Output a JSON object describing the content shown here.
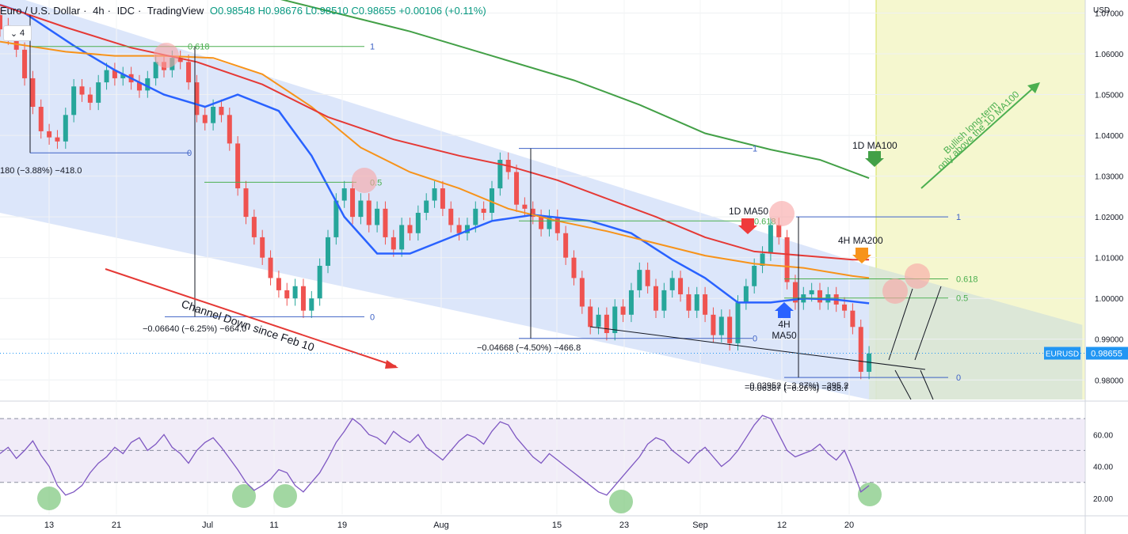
{
  "header": {
    "symbol": "Euro / U.S. Dollar",
    "timeframe": "4h",
    "source": "IDC",
    "platform": "TradingView",
    "ohlc": "O0.98548 H0.98676 L0.98510 C0.98655 +0.00106 (+0.11%)"
  },
  "badge": {
    "icon": "chevron-down-icon",
    "count": "4"
  },
  "colors": {
    "channel": "#c9d9f7",
    "ma50_4h": "#2962ff",
    "ma100_1d": "#e53935",
    "ma200_4h": "#f7931a",
    "ma100_1d_green": "#43a047",
    "rsi": "#7e57c2",
    "price_label": "#2196f3",
    "fib": "#4caf50",
    "up": "#26a69a",
    "down": "#ef5350"
  },
  "chart_data": [
    {
      "type": "line",
      "title": "Euro / U.S. Dollar · 4h · IDC",
      "y_axis_label": "USD",
      "ylim": [
        0.9752,
        1.0732
      ],
      "y_ticks": [
        "1.07000",
        "1.06000",
        "1.05000",
        "1.04000",
        "1.03000",
        "1.02000",
        "1.01000",
        "1.00000",
        "0.99000",
        "0.98000"
      ],
      "x_ticks": [
        "13",
        "21",
        "Jul",
        "11",
        "19",
        "Aug",
        "15",
        "23",
        "Sep",
        "12",
        "20"
      ],
      "current_price": {
        "label": "EURUSD",
        "value": "0.98655"
      },
      "series": [
        {
          "name": "4H MA50",
          "points": [
            [
              0,
              1.072
            ],
            [
              3,
              1.07
            ],
            [
              9,
              1.062
            ],
            [
              14,
              1.056
            ],
            [
              20,
              1.05
            ],
            [
              25,
              1.047
            ],
            [
              29,
              1.05
            ],
            [
              34,
              1.046
            ],
            [
              38,
              1.035
            ],
            [
              42,
              1.02
            ],
            [
              46,
              1.011
            ],
            [
              50,
              1.011
            ],
            [
              55,
              1.015
            ],
            [
              60,
              1.019
            ],
            [
              65,
              1.0205
            ],
            [
              72,
              1.019
            ],
            [
              77,
              1.016
            ],
            [
              82,
              1.0095
            ],
            [
              86,
              1.005
            ],
            [
              90,
              0.999
            ],
            [
              94,
              0.999
            ],
            [
              98,
              1.0
            ],
            [
              102,
              0.9997
            ],
            [
              106,
              0.9988
            ]
          ]
        },
        {
          "name": "1D MA50",
          "points": [
            [
              0,
              1.063
            ],
            [
              8,
              1.0605
            ],
            [
              14,
              1.0595
            ],
            [
              20,
              1.0595
            ],
            [
              26,
              1.059
            ],
            [
              32,
              1.055
            ],
            [
              38,
              1.047
            ],
            [
              44,
              1.037
            ],
            [
              50,
              1.031
            ],
            [
              56,
              1.027
            ],
            [
              62,
              1.022
            ],
            [
              68,
              1.019
            ],
            [
              74,
              1.0165
            ],
            [
              80,
              1.0135
            ],
            [
              86,
              1.0105
            ],
            [
              92,
              1.0085
            ],
            [
              98,
              1.0075
            ],
            [
              104,
              1.0055
            ],
            [
              106,
              1.005
            ]
          ]
        },
        {
          "name": "1D MA100",
          "points": [
            [
              0,
              1.072
            ],
            [
              8,
              1.0665
            ],
            [
              16,
              1.0615
            ],
            [
              24,
              1.058
            ],
            [
              32,
              1.0525
            ],
            [
              40,
              1.0445
            ],
            [
              48,
              1.039
            ],
            [
              56,
              1.035
            ],
            [
              62,
              1.0325
            ],
            [
              68,
              1.029
            ],
            [
              74,
              1.0245
            ],
            [
              80,
              1.02
            ],
            [
              86,
              1.015
            ],
            [
              92,
              1.0115
            ],
            [
              98,
              1.0105
            ],
            [
              104,
              1.0095
            ],
            [
              106,
              1.0095
            ]
          ]
        },
        {
          "name": "1D MA100 (weekly)",
          "points": [
            [
              32,
              1.0745
            ],
            [
              40,
              1.0705
            ],
            [
              50,
              1.0655
            ],
            [
              60,
              1.0595
            ],
            [
              70,
              1.0535
            ],
            [
              78,
              1.0475
            ],
            [
              86,
              1.0405
            ],
            [
              94,
              1.0365
            ],
            [
              100,
              1.034
            ],
            [
              106,
              1.0295
            ]
          ]
        }
      ],
      "candles": [
        [
          0,
          1.0695,
          1.066
        ],
        [
          1,
          1.067,
          1.064
        ],
        [
          2,
          1.065,
          1.061
        ],
        [
          3,
          1.061,
          1.054
        ],
        [
          4,
          1.054,
          1.047
        ],
        [
          5,
          1.047,
          1.041
        ],
        [
          6,
          1.041,
          1.0395
        ],
        [
          7,
          1.0395,
          1.0385
        ],
        [
          8,
          1.0385,
          1.045
        ],
        [
          9,
          1.045,
          1.052
        ],
        [
          10,
          1.052,
          1.05
        ],
        [
          11,
          1.05,
          1.048
        ],
        [
          12,
          1.048,
          1.053
        ],
        [
          13,
          1.053,
          1.056
        ],
        [
          14,
          1.056,
          1.054
        ],
        [
          15,
          1.054,
          1.055
        ],
        [
          16,
          1.055,
          1.053
        ],
        [
          17,
          1.053,
          1.051
        ],
        [
          18,
          1.051,
          1.054
        ],
        [
          19,
          1.054,
          1.058
        ],
        [
          20,
          1.058,
          1.056
        ],
        [
          21,
          1.056,
          1.059
        ],
        [
          22,
          1.059,
          1.058
        ],
        [
          23,
          1.058,
          1.053
        ],
        [
          24,
          1.053,
          1.045
        ],
        [
          25,
          1.045,
          1.043
        ],
        [
          26,
          1.043,
          1.047
        ],
        [
          27,
          1.047,
          1.045
        ],
        [
          28,
          1.045,
          1.038
        ],
        [
          29,
          1.038,
          1.027
        ],
        [
          30,
          1.027,
          1.02
        ],
        [
          31,
          1.02,
          1.015
        ],
        [
          32,
          1.015,
          1.01
        ],
        [
          33,
          1.01,
          1.005
        ],
        [
          34,
          1.005,
          1.002
        ],
        [
          35,
          1.002,
          1.0
        ],
        [
          36,
          1.0,
          1.003
        ],
        [
          37,
          1.003,
          0.997
        ],
        [
          38,
          0.997,
          1.0
        ],
        [
          39,
          1.0,
          1.008
        ],
        [
          40,
          1.008,
          1.015
        ],
        [
          41,
          1.015,
          1.024
        ],
        [
          42,
          1.024,
          1.027
        ],
        [
          43,
          1.027,
          1.02
        ],
        [
          44,
          1.02,
          1.024
        ],
        [
          45,
          1.024,
          1.018
        ],
        [
          46,
          1.018,
          1.022
        ],
        [
          47,
          1.022,
          1.015
        ],
        [
          48,
          1.015,
          1.012
        ],
        [
          49,
          1.012,
          1.018
        ],
        [
          50,
          1.018,
          1.016
        ],
        [
          51,
          1.016,
          1.021
        ],
        [
          52,
          1.021,
          1.024
        ],
        [
          53,
          1.024,
          1.027
        ],
        [
          54,
          1.027,
          1.022
        ],
        [
          55,
          1.022,
          1.018
        ],
        [
          56,
          1.018,
          1.016
        ],
        [
          57,
          1.016,
          1.018
        ],
        [
          58,
          1.018,
          1.022
        ],
        [
          59,
          1.022,
          1.021
        ],
        [
          60,
          1.021,
          1.027
        ],
        [
          61,
          1.027,
          1.034
        ],
        [
          62,
          1.034,
          1.031
        ],
        [
          63,
          1.031,
          1.023
        ],
        [
          64,
          1.023,
          1.022
        ],
        [
          65,
          1.022,
          1.02
        ],
        [
          66,
          1.02,
          1.017
        ],
        [
          67,
          1.017,
          1.02
        ],
        [
          68,
          1.02,
          1.016
        ],
        [
          69,
          1.016,
          1.01
        ],
        [
          70,
          1.01,
          1.005
        ],
        [
          71,
          1.005,
          0.998
        ],
        [
          72,
          0.998,
          0.993
        ],
        [
          73,
          0.993,
          0.996
        ],
        [
          74,
          0.996,
          0.9915
        ],
        [
          75,
          0.9915,
          0.998
        ],
        [
          76,
          0.998,
          0.996
        ],
        [
          77,
          0.996,
          1.002
        ],
        [
          78,
          1.002,
          1.007
        ],
        [
          79,
          1.007,
          1.003
        ],
        [
          80,
          1.003,
          0.997
        ],
        [
          81,
          0.997,
          1.002
        ],
        [
          82,
          1.002,
          1.005
        ],
        [
          83,
          1.005,
          1.001
        ],
        [
          84,
          1.001,
          0.997
        ],
        [
          85,
          0.997,
          1.001
        ],
        [
          86,
          1.001,
          0.996
        ],
        [
          87,
          0.996,
          0.991
        ],
        [
          88,
          0.991,
          0.9955
        ],
        [
          89,
          0.9955,
          0.989
        ],
        [
          90,
          0.989,
          0.999
        ],
        [
          91,
          0.999,
          1.003
        ],
        [
          92,
          1.003,
          1.008
        ],
        [
          93,
          1.008,
          1.011
        ],
        [
          94,
          1.011,
          1.018
        ],
        [
          95,
          1.018,
          1.015
        ],
        [
          96,
          1.015,
          1.004
        ],
        [
          97,
          1.004,
          0.999
        ],
        [
          98,
          0.999,
          1.001
        ],
        [
          99,
          1.001,
          1.002
        ],
        [
          100,
          1.002,
          0.999
        ],
        [
          101,
          0.999,
          1.001
        ],
        [
          102,
          1.001,
          0.9985
        ],
        [
          103,
          0.9985,
          0.997
        ],
        [
          104,
          0.997,
          0.993
        ],
        [
          105,
          0.993,
          0.982
        ],
        [
          106,
          0.982,
          0.9865
        ]
      ],
      "annotations": {
        "fib_levels": [
          {
            "label": "0.618",
            "value": 1.0618
          },
          {
            "label": "1",
            "value": 1.0618
          },
          {
            "label": "0",
            "value": 1.0357
          },
          {
            "label": "0.5",
            "value": 1.0285
          },
          {
            "label": "0",
            "value": 0.9955
          },
          {
            "label": "1",
            "value": 1.0368
          },
          {
            "label": "0",
            "value": 0.9902
          },
          {
            "label": "0.618",
            "value": 1.019
          },
          {
            "label": "1",
            "value": 1.02
          },
          {
            "label": "0.618",
            "value": 1.0048
          },
          {
            "label": "0.5",
            "value": 1.0001
          },
          {
            "label": "0",
            "value": 0.9806
          }
        ],
        "measures": [
          "180 (−3.88%) −418.0",
          "−0.06640 (−6.25%) −664.0",
          "−0.04668 (−4.50%) −466.8",
          "−0.03952 (−3.87%) −395.2",
          "−0.06387 (−6.26%) −638.7"
        ],
        "labels": {
          "channel": "Channel Down since Feb 10",
          "ma50_1d": "1D MA50",
          "ma100_1d": "1D MA100",
          "ma200_4h": "4H MA200",
          "ma50_4h_line1": "4H",
          "ma50_4h_line2": "MA50",
          "bullish_line1": "Bullish long-term",
          "bullish_line2": "only above the 1D MA100"
        }
      }
    },
    {
      "type": "line",
      "title": "",
      "ylim": [
        10,
        78
      ],
      "y_ticks": [
        "60.00",
        "40.00",
        "20.00"
      ],
      "levels": [
        70,
        50,
        30
      ],
      "series": [
        {
          "name": "",
          "values": [
            48,
            52,
            45,
            50,
            56,
            47,
            40,
            28,
            22,
            24,
            28,
            36,
            42,
            46,
            52,
            48,
            55,
            58,
            50,
            54,
            60,
            52,
            48,
            42,
            50,
            55,
            58,
            52,
            45,
            38,
            30,
            25,
            28,
            32,
            38,
            36,
            28,
            24,
            30,
            36,
            45,
            55,
            62,
            70,
            66,
            60,
            58,
            54,
            62,
            58,
            55,
            60,
            52,
            48,
            44,
            50,
            56,
            60,
            58,
            54,
            62,
            68,
            66,
            58,
            52,
            46,
            42,
            48,
            44,
            40,
            36,
            32,
            28,
            24,
            22,
            28,
            34,
            40,
            46,
            54,
            58,
            56,
            50,
            46,
            42,
            48,
            52,
            46,
            40,
            44,
            50,
            58,
            66,
            72,
            70,
            60,
            50,
            46,
            48,
            50,
            54,
            48,
            44,
            50,
            38,
            24,
            28
          ]
        }
      ]
    }
  ]
}
